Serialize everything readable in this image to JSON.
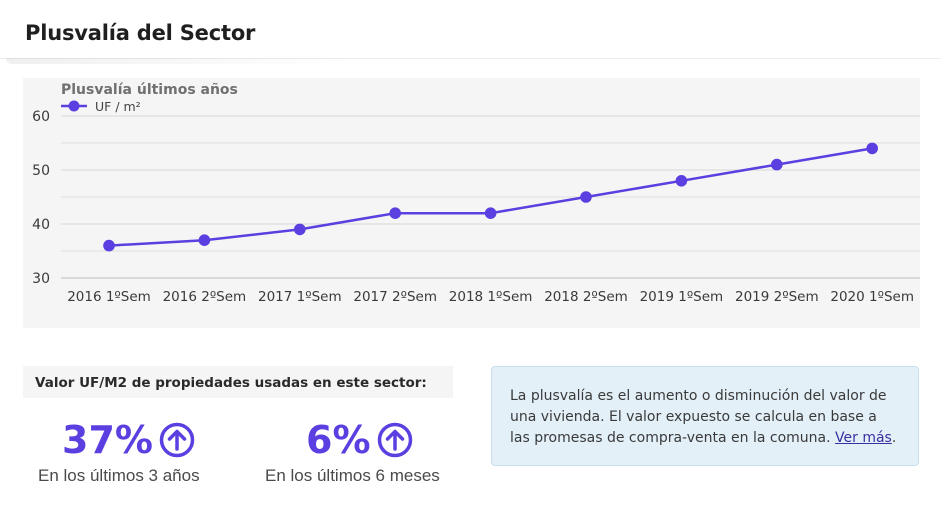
{
  "header": {
    "title": "Plusvalía del Sector"
  },
  "chart_data": {
    "type": "line",
    "subtitle": "Plusvalía últimos años",
    "categories": [
      "2016 1ºSem",
      "2016 2ºSem",
      "2017 1ºSem",
      "2017 2ºSem",
      "2018 1ºSem",
      "2018 2ºSem",
      "2019 1ºSem",
      "2019 2ºSem",
      "2020 1ºSem"
    ],
    "series": [
      {
        "name": "UF / m²",
        "values": [
          36,
          37,
          39,
          42,
          42,
          45,
          48,
          51,
          54
        ],
        "color": "#5b3fe0"
      }
    ],
    "yticks": [
      30,
      40,
      50,
      60
    ],
    "ylim": [
      30,
      60
    ],
    "grid": true,
    "legend": "top-left"
  },
  "stats": {
    "label": "Valor UF/M2 de propiedades usadas en este sector:",
    "items": [
      {
        "value": "37%",
        "caption": "En los últimos 3 años",
        "icon": "arrow-up-circle-icon"
      },
      {
        "value": "6%",
        "caption": "En los últimos 6 meses",
        "icon": "arrow-up-circle-icon"
      }
    ]
  },
  "info": {
    "text": "La plusvalía es el aumento o disminución del valor de una vivienda. El valor expuesto se calcula en base a las promesas de compra-venta en la comuna. ",
    "link": "Ver más",
    "end": "."
  },
  "colors": {
    "accent": "#5b3fe0",
    "info_bg": "#e3f0f8"
  }
}
